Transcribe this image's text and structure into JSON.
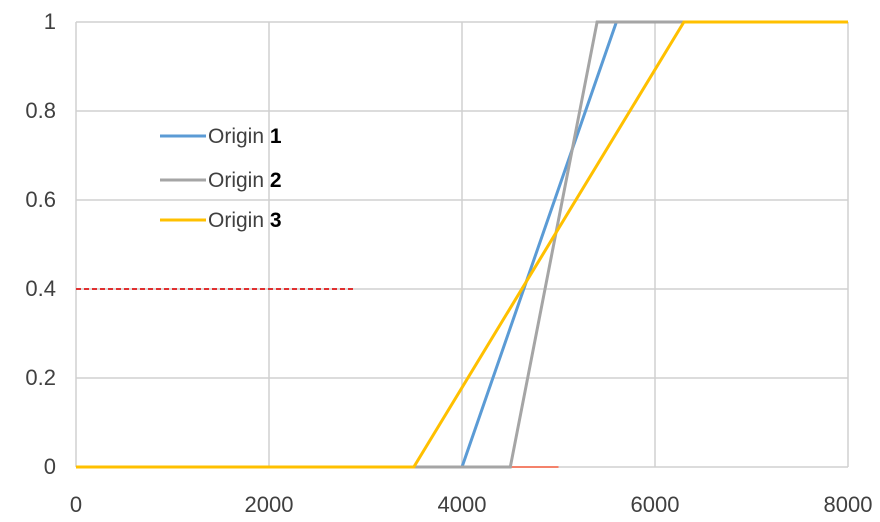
{
  "chart_data": {
    "type": "line",
    "title": "",
    "xlabel": "",
    "ylabel": "",
    "xlim": [
      0,
      8000
    ],
    "ylim": [
      0,
      1
    ],
    "x_ticks": [
      0,
      2000,
      4000,
      6000,
      8000
    ],
    "y_ticks": [
      0,
      0.2,
      0.4,
      0.6,
      0.8,
      1
    ],
    "x_tick_labels": [
      "0",
      "2000",
      "4000",
      "6000",
      "8000"
    ],
    "y_tick_labels": [
      "0",
      "0.2",
      "0.4",
      "0.6",
      "0.8",
      "1"
    ],
    "grid": true,
    "legend_position": "upper-left",
    "series": [
      {
        "name": "Origin",
        "name_number": "1",
        "color": "#5b9bd5",
        "points": [
          [
            0,
            0
          ],
          [
            4000,
            0
          ],
          [
            5600,
            1
          ],
          [
            8000,
            1
          ]
        ]
      },
      {
        "name": "Origin",
        "name_number": "2",
        "color": "#a5a5a5",
        "points": [
          [
            0,
            0
          ],
          [
            4500,
            0
          ],
          [
            5400,
            1
          ],
          [
            8000,
            1
          ]
        ]
      },
      {
        "name": "Origin",
        "name_number": "3",
        "color": "#ffc000",
        "points": [
          [
            0,
            0
          ],
          [
            3500,
            0
          ],
          [
            6300,
            1
          ],
          [
            8000,
            1
          ]
        ]
      }
    ],
    "annotations": [
      {
        "type": "dashed-line",
        "color": "#e03030",
        "points": [
          [
            0,
            0.4
          ],
          [
            2900,
            0.4
          ]
        ]
      },
      {
        "type": "segment",
        "color": "#f4826b",
        "points": [
          [
            4500,
            0
          ],
          [
            5000,
            0
          ]
        ]
      }
    ],
    "colors": {
      "grid": "#d0d0d0",
      "tick_text": "#404040"
    }
  }
}
